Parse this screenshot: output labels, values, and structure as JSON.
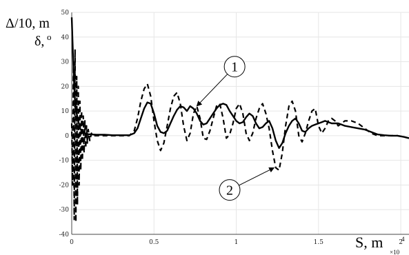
{
  "chart_data": {
    "type": "line",
    "title": "",
    "ylabel_line1": "Δ/10, m",
    "ylabel_line2": "δ,",
    "ylabel_degree": "o",
    "xlabel": "S, m",
    "x_multiplier_base": "×10",
    "x_multiplier_exp": "4",
    "xlim": [
      0,
      2.05
    ],
    "ylim": [
      -40,
      50
    ],
    "xticks": [
      0,
      0.5,
      1,
      1.5,
      2
    ],
    "xtick_labels": [
      "0",
      "0.5",
      "1",
      "1.5",
      "2"
    ],
    "yticks": [
      -40,
      -30,
      -20,
      -10,
      0,
      10,
      20,
      30,
      40,
      50
    ],
    "ytick_labels": [
      "-40",
      "-30",
      "-20",
      "-10",
      "0",
      "10",
      "20",
      "30",
      "40",
      "50"
    ],
    "grid": true,
    "series": [
      {
        "label": "1",
        "style": "solid",
        "points": [
          [
            0,
            48
          ],
          [
            0.005,
            38
          ],
          [
            0.01,
            28
          ],
          [
            0.015,
            20
          ],
          [
            0.02,
            14
          ],
          [
            0.03,
            9
          ],
          [
            0.04,
            6
          ],
          [
            0.05,
            3
          ],
          [
            0.06,
            2
          ],
          [
            0.08,
            1
          ],
          [
            0.1,
            0.6
          ],
          [
            0.15,
            0.4
          ],
          [
            0.2,
            0.4
          ],
          [
            0.25,
            0.2
          ],
          [
            0.3,
            0.2
          ],
          [
            0.35,
            0.2
          ],
          [
            0.38,
            1
          ],
          [
            0.4,
            3
          ],
          [
            0.42,
            7
          ],
          [
            0.44,
            11
          ],
          [
            0.46,
            13.5
          ],
          [
            0.48,
            13
          ],
          [
            0.5,
            9
          ],
          [
            0.52,
            4
          ],
          [
            0.54,
            1.5
          ],
          [
            0.56,
            1
          ],
          [
            0.58,
            2
          ],
          [
            0.6,
            5
          ],
          [
            0.62,
            8
          ],
          [
            0.64,
            10.5
          ],
          [
            0.66,
            12
          ],
          [
            0.68,
            11.5
          ],
          [
            0.7,
            10
          ],
          [
            0.72,
            12
          ],
          [
            0.74,
            11
          ],
          [
            0.76,
            9
          ],
          [
            0.78,
            6
          ],
          [
            0.8,
            4.5
          ],
          [
            0.82,
            5
          ],
          [
            0.84,
            7
          ],
          [
            0.86,
            9
          ],
          [
            0.88,
            11
          ],
          [
            0.9,
            12.5
          ],
          [
            0.92,
            13
          ],
          [
            0.94,
            12.5
          ],
          [
            0.96,
            10
          ],
          [
            0.98,
            8
          ],
          [
            1.0,
            6
          ],
          [
            1.02,
            5
          ],
          [
            1.04,
            5.5
          ],
          [
            1.06,
            7.5
          ],
          [
            1.08,
            9
          ],
          [
            1.1,
            8
          ],
          [
            1.12,
            5
          ],
          [
            1.14,
            3
          ],
          [
            1.16,
            3.5
          ],
          [
            1.18,
            5
          ],
          [
            1.2,
            6
          ],
          [
            1.22,
            3
          ],
          [
            1.24,
            -2
          ],
          [
            1.26,
            -5
          ],
          [
            1.28,
            -3
          ],
          [
            1.3,
            1
          ],
          [
            1.32,
            4
          ],
          [
            1.34,
            6
          ],
          [
            1.36,
            7
          ],
          [
            1.38,
            5
          ],
          [
            1.4,
            2
          ],
          [
            1.42,
            1.5
          ],
          [
            1.44,
            3
          ],
          [
            1.46,
            4
          ],
          [
            1.48,
            4.5
          ],
          [
            1.5,
            5
          ],
          [
            1.52,
            5.5
          ],
          [
            1.54,
            6
          ],
          [
            1.56,
            5.5
          ],
          [
            1.58,
            5
          ],
          [
            1.6,
            5
          ],
          [
            1.62,
            5
          ],
          [
            1.64,
            4.5
          ],
          [
            1.66,
            4
          ],
          [
            1.7,
            3.5
          ],
          [
            1.74,
            3
          ],
          [
            1.78,
            2.5
          ],
          [
            1.82,
            1.5
          ],
          [
            1.86,
            0.5
          ],
          [
            1.9,
            0.2
          ],
          [
            1.94,
            0
          ],
          [
            1.98,
            0
          ],
          [
            2.02,
            -0.5
          ],
          [
            2.05,
            -1
          ]
        ]
      },
      {
        "label": "2",
        "style": "dashed",
        "points": [
          [
            0,
            5
          ],
          [
            0.005,
            -20
          ],
          [
            0.01,
            30
          ],
          [
            0.015,
            -34
          ],
          [
            0.02,
            35
          ],
          [
            0.025,
            -35
          ],
          [
            0.03,
            24
          ],
          [
            0.035,
            -28
          ],
          [
            0.04,
            20
          ],
          [
            0.045,
            -20
          ],
          [
            0.05,
            14
          ],
          [
            0.055,
            -14
          ],
          [
            0.06,
            10
          ],
          [
            0.065,
            -10
          ],
          [
            0.07,
            8
          ],
          [
            0.075,
            -7
          ],
          [
            0.08,
            6
          ],
          [
            0.085,
            -5
          ],
          [
            0.09,
            4
          ],
          [
            0.095,
            -3
          ],
          [
            0.1,
            2.5
          ],
          [
            0.11,
            -2
          ],
          [
            0.12,
            1
          ],
          [
            0.13,
            0
          ],
          [
            0.15,
            0
          ],
          [
            0.2,
            0
          ],
          [
            0.25,
            0
          ],
          [
            0.3,
            0
          ],
          [
            0.35,
            0
          ],
          [
            0.38,
            2
          ],
          [
            0.4,
            7
          ],
          [
            0.42,
            14
          ],
          [
            0.44,
            19
          ],
          [
            0.46,
            21
          ],
          [
            0.48,
            16
          ],
          [
            0.5,
            6
          ],
          [
            0.52,
            -2
          ],
          [
            0.54,
            -6
          ],
          [
            0.56,
            -3
          ],
          [
            0.58,
            4
          ],
          [
            0.6,
            11
          ],
          [
            0.62,
            16
          ],
          [
            0.64,
            17.5
          ],
          [
            0.66,
            13
          ],
          [
            0.68,
            4
          ],
          [
            0.7,
            -2
          ],
          [
            0.72,
            1
          ],
          [
            0.74,
            9
          ],
          [
            0.76,
            12
          ],
          [
            0.78,
            7
          ],
          [
            0.8,
            -1
          ],
          [
            0.82,
            -1.5
          ],
          [
            0.84,
            2
          ],
          [
            0.86,
            7
          ],
          [
            0.88,
            12
          ],
          [
            0.9,
            13
          ],
          [
            0.92,
            7
          ],
          [
            0.94,
            -1
          ],
          [
            0.96,
            0.5
          ],
          [
            0.98,
            5
          ],
          [
            1.0,
            11
          ],
          [
            1.02,
            13
          ],
          [
            1.04,
            9
          ],
          [
            1.06,
            1
          ],
          [
            1.08,
            -2
          ],
          [
            1.1,
            1
          ],
          [
            1.12,
            7
          ],
          [
            1.14,
            11
          ],
          [
            1.16,
            13
          ],
          [
            1.18,
            9
          ],
          [
            1.2,
            3
          ],
          [
            1.22,
            -6
          ],
          [
            1.24,
            -13
          ],
          [
            1.26,
            -14
          ],
          [
            1.28,
            -7
          ],
          [
            1.3,
            4
          ],
          [
            1.32,
            12
          ],
          [
            1.34,
            14
          ],
          [
            1.36,
            10
          ],
          [
            1.38,
            0
          ],
          [
            1.4,
            -2.5
          ],
          [
            1.42,
            1
          ],
          [
            1.44,
            6
          ],
          [
            1.46,
            10
          ],
          [
            1.48,
            11
          ],
          [
            1.5,
            4
          ],
          [
            1.52,
            1
          ],
          [
            1.54,
            3
          ],
          [
            1.56,
            6
          ],
          [
            1.58,
            7
          ],
          [
            1.6,
            6
          ],
          [
            1.62,
            4
          ],
          [
            1.64,
            5
          ],
          [
            1.66,
            6
          ],
          [
            1.7,
            6
          ],
          [
            1.74,
            5
          ],
          [
            1.78,
            3
          ],
          [
            1.82,
            1
          ],
          [
            1.86,
            0
          ],
          [
            1.9,
            0
          ],
          [
            1.94,
            0
          ],
          [
            1.98,
            0
          ],
          [
            2.02,
            -0.5
          ],
          [
            2.05,
            -1
          ]
        ]
      }
    ],
    "annotations": [
      {
        "text": "1",
        "circle_at": [
          0.99,
          28
        ],
        "arrow_to": [
          0.76,
          12
        ]
      },
      {
        "text": "2",
        "circle_at": [
          0.96,
          -22
        ],
        "arrow_to": [
          1.23,
          -13
        ]
      }
    ]
  }
}
